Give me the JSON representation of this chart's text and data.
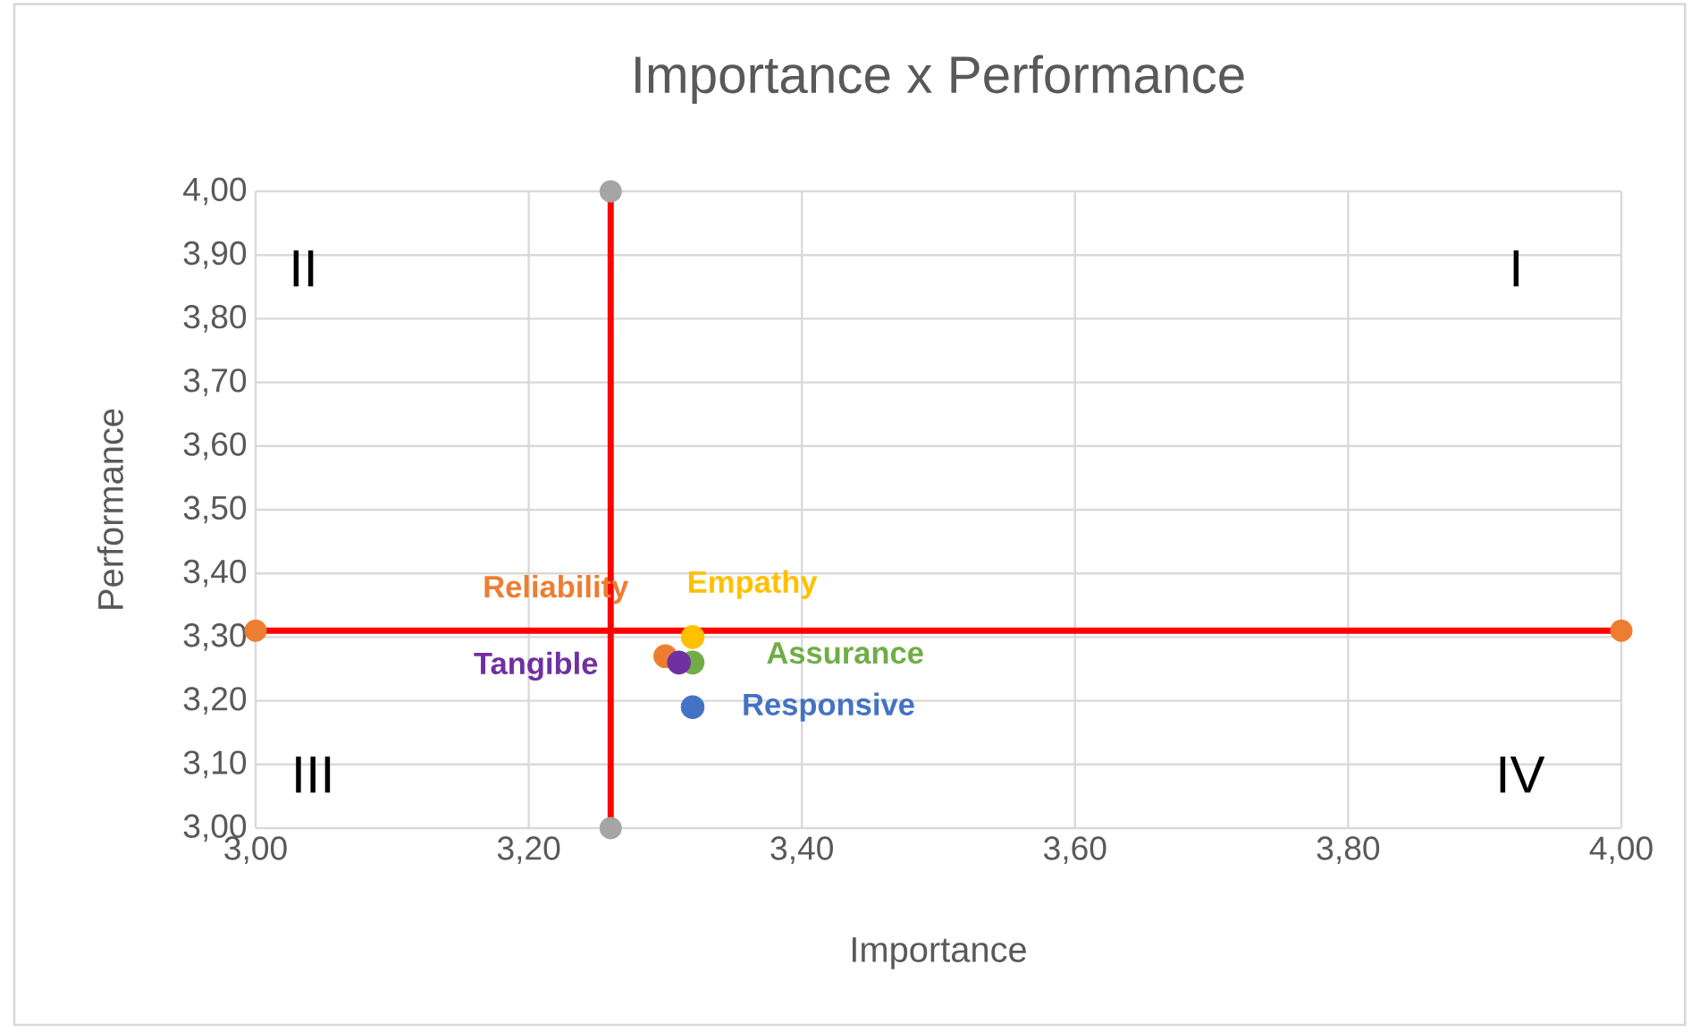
{
  "chart_data": {
    "type": "scatter",
    "title": "Importance x Performance",
    "xlabel": "Importance",
    "ylabel": "Performance",
    "xlim": [
      3.0,
      4.0
    ],
    "ylim": [
      3.0,
      4.0
    ],
    "xticks": [
      {
        "value": 3.0,
        "label": "3,00"
      },
      {
        "value": 3.2,
        "label": "3,20"
      },
      {
        "value": 3.4,
        "label": "3,40"
      },
      {
        "value": 3.6,
        "label": "3,60"
      },
      {
        "value": 3.8,
        "label": "3,80"
      },
      {
        "value": 4.0,
        "label": "4,00"
      }
    ],
    "yticks": [
      {
        "value": 3.0,
        "label": "3,00"
      },
      {
        "value": 3.1,
        "label": "3,10"
      },
      {
        "value": 3.2,
        "label": "3,20"
      },
      {
        "value": 3.3,
        "label": "3,30"
      },
      {
        "value": 3.4,
        "label": "3,40"
      },
      {
        "value": 3.5,
        "label": "3,50"
      },
      {
        "value": 3.6,
        "label": "3,60"
      },
      {
        "value": 3.7,
        "label": "3,70"
      },
      {
        "value": 3.8,
        "label": "3,80"
      },
      {
        "value": 3.9,
        "label": "3,90"
      },
      {
        "value": 4.0,
        "label": "4,00"
      }
    ],
    "grid": true,
    "marker": "circle",
    "series": [
      {
        "type": "line",
        "x": [
          3.26,
          3.26
        ],
        "values": [
          3.0,
          4.0
        ],
        "color": "#ff0000",
        "colors": [
          "#a5a5a5",
          "#a5a5a5"
        ]
      },
      {
        "type": "line",
        "x": [
          3.0,
          4.0
        ],
        "values": [
          3.31,
          3.31
        ],
        "color": "#ff0000",
        "colors": [
          "#ed7d31",
          "#ed7d31"
        ]
      },
      {
        "name": "Reliability",
        "x": [
          3.3
        ],
        "values": [
          3.27
        ],
        "color": "#ed7d31"
      },
      {
        "name": "Empathy",
        "x": [
          3.32
        ],
        "values": [
          3.3
        ],
        "color": "#ffc000"
      },
      {
        "name": "Assurance",
        "x": [
          3.32
        ],
        "values": [
          3.26
        ],
        "color": "#70ad47"
      },
      {
        "name": "Tangible",
        "x": [
          3.31
        ],
        "values": [
          3.26
        ],
        "color": "#7030a0"
      },
      {
        "name": "Responsive",
        "x": [
          3.32
        ],
        "values": [
          3.19
        ],
        "color": "#4472c4"
      }
    ],
    "annotations": [
      "II",
      "I",
      "III",
      "IV"
    ]
  }
}
